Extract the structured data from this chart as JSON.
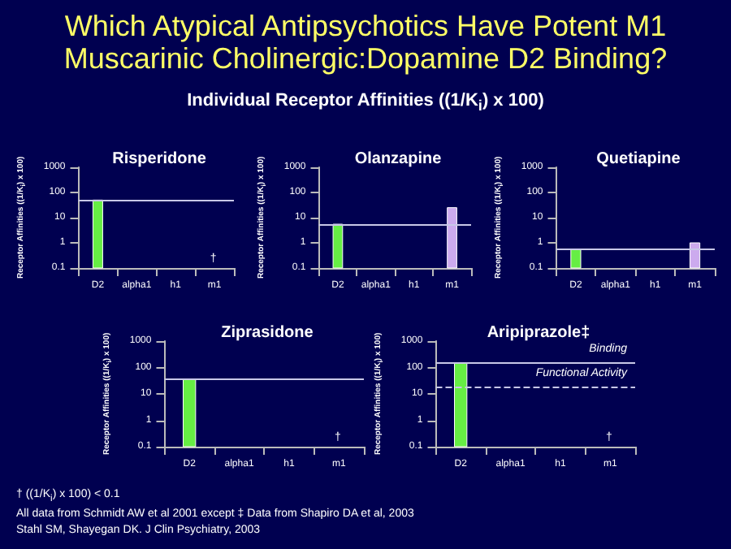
{
  "chart_data": [
    {
      "type": "other",
      "title": "Which Atypical Antipsychotics Have Potent M1 Muscarinic Cholinergic:Dopamine D2 Binding?",
      "subtitle": "Individual Receptor Affinities ((1/K$_{i}$) x 100)",
      "annotations": [
        "† ((1/K$_{i}$) x 100) < 0.1",
        "All data from Schmidt AW et al 2001 except ‡ Data from Shapiro DA et al, 2003",
        "Stahl SM, Shayegan DK. J Clin Psychiatry, 2003"
      ]
    },
    {
      "type": "bar",
      "title": "Risperidone",
      "ylabel": "Receptor Affinities ((1/K$_{i}$) x 100)",
      "categories": [
        "D2",
        "alpha1",
        "h1",
        "m1"
      ],
      "values": [
        50,
        null,
        null,
        null
      ],
      "colors": [
        "#66ee44",
        null,
        null,
        null
      ],
      "log": true,
      "ylim": [
        0.1,
        1000
      ],
      "yticks": [
        0.1,
        1,
        10,
        100,
        1000
      ],
      "ref_lines": [
        {
          "axis": "y",
          "value": 50,
          "color": "#c8c8e8"
        }
      ],
      "annotations": [
        "†"
      ]
    },
    {
      "type": "bar",
      "title": "Olanzapine",
      "ylabel": "Receptor Affinities ((1/K$_{i}$) x 100)",
      "categories": [
        "D2",
        "alpha1",
        "h1",
        "m1"
      ],
      "values": [
        5.5,
        null,
        null,
        25
      ],
      "colors": [
        "#66ee44",
        null,
        null,
        "#ccaaee"
      ],
      "log": true,
      "ylim": [
        0.1,
        1000
      ],
      "yticks": [
        0.1,
        1,
        10,
        100,
        1000
      ],
      "ref_lines": [
        {
          "axis": "y",
          "value": 5.5,
          "color": "#c8c8e8"
        }
      ]
    },
    {
      "type": "bar",
      "title": "Quetiapine",
      "ylabel": "Receptor Affinities ((1/K$_{i}$) x 100)",
      "categories": [
        "D2",
        "alpha1",
        "h1",
        "m1"
      ],
      "values": [
        0.55,
        null,
        null,
        1
      ],
      "colors": [
        "#66ee44",
        null,
        null,
        "#ccaaee"
      ],
      "log": true,
      "ylim": [
        0.1,
        1000
      ],
      "yticks": [
        0.1,
        1,
        10,
        100,
        1000
      ],
      "ref_lines": [
        {
          "axis": "y",
          "value": 0.55,
          "color": "#c8c8e8"
        }
      ]
    },
    {
      "type": "bar",
      "title": "Ziprasidone",
      "ylabel": "Receptor Affinities ((1/K$_{i}$) x 100)",
      "categories": [
        "D2",
        "alpha1",
        "h1",
        "m1"
      ],
      "values": [
        35,
        null,
        null,
        null
      ],
      "colors": [
        "#66ee44",
        null,
        null,
        null
      ],
      "log": true,
      "ylim": [
        0.1,
        1000
      ],
      "yticks": [
        0.1,
        1,
        10,
        100,
        1000
      ],
      "ref_lines": [
        {
          "axis": "y",
          "value": 35,
          "color": "#c8c8e8"
        }
      ],
      "annotations": [
        "†"
      ]
    },
    {
      "type": "bar",
      "title": "Aripiprazole‡",
      "ylabel": "Receptor Affinities ((1/K$_{i}$) x 100)",
      "categories": [
        "D2",
        "alpha1",
        "h1",
        "m1"
      ],
      "values": [
        150,
        null,
        null,
        null
      ],
      "colors": [
        "#66ee44",
        null,
        null,
        null
      ],
      "log": true,
      "ylim": [
        0.1,
        1000
      ],
      "yticks": [
        0.1,
        1,
        10,
        100,
        1000
      ],
      "ref_lines": [
        {
          "axis": "y",
          "value": 150,
          "label": "Binding",
          "color": "#c8c8e8"
        },
        {
          "axis": "y",
          "value": 18,
          "label": "Functional Activity",
          "color": "#c8c8e8",
          "line_style": "dashed"
        }
      ],
      "annotations": [
        "†"
      ]
    }
  ]
}
